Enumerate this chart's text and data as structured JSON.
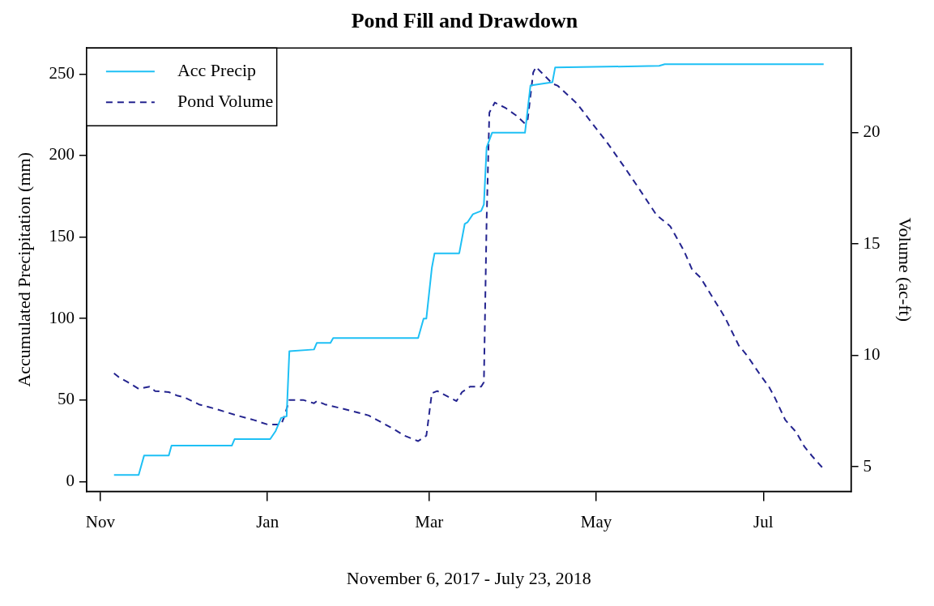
{
  "chart_data": {
    "type": "line",
    "title": "Pond Fill and Drawdown",
    "xlabel": "November 6, 2017 - July 23, 2018",
    "ylabel": "Accumulated Precipitation (mm)",
    "y2label": "Volume (ac-ft)",
    "xlim": [
      "2017-10-27",
      "2018-08-02"
    ],
    "xticks": [
      {
        "value": "2017-11-01",
        "label": "Nov"
      },
      {
        "value": "2018-01-01",
        "label": "Jan"
      },
      {
        "value": "2018-03-01",
        "label": "Mar"
      },
      {
        "value": "2018-05-01",
        "label": "May"
      },
      {
        "value": "2018-07-01",
        "label": "Jul"
      }
    ],
    "ylim": [
      -6,
      266
    ],
    "yticks": [
      0,
      50,
      100,
      150,
      200,
      250
    ],
    "y2lim": [
      3.9,
      23.8
    ],
    "y2ticks": [
      5,
      10,
      15,
      20
    ],
    "legend": "top left",
    "marker": "none",
    "series": [
      {
        "name": "Acc Precip",
        "color": "#1ec0f5",
        "line_style": "solid",
        "x": [
          "2017-11-06",
          "2017-11-15",
          "2017-11-17",
          "2017-11-26",
          "2017-11-27",
          "2017-12-19",
          "2017-12-20",
          "2018-01-02",
          "2018-01-04",
          "2018-01-06",
          "2018-01-08",
          "2018-01-09",
          "2018-01-18",
          "2018-01-19",
          "2018-01-24",
          "2018-01-25",
          "2018-02-25",
          "2018-02-27",
          "2018-02-28",
          "2018-03-02",
          "2018-03-03",
          "2018-03-12",
          "2018-03-14",
          "2018-03-15",
          "2018-03-17",
          "2018-03-20",
          "2018-03-21",
          "2018-03-22",
          "2018-03-24",
          "2018-04-05",
          "2018-04-07",
          "2018-04-15",
          "2018-04-16",
          "2018-05-24",
          "2018-05-26",
          "2018-07-23"
        ],
        "values": [
          4,
          4,
          16,
          16,
          22,
          22,
          26,
          26,
          31,
          39,
          40,
          80,
          81,
          85,
          85,
          88,
          88,
          100,
          100,
          131,
          140,
          140,
          158,
          159,
          164,
          166,
          170,
          205,
          214,
          214,
          243,
          245,
          254,
          255,
          256,
          256
        ]
      },
      {
        "name": "Pond Volume",
        "color": "#24248f",
        "line_style": "dashed",
        "axis": "y2",
        "x": [
          "2017-11-06",
          "2017-11-08",
          "2017-11-11",
          "2017-11-15",
          "2017-11-19",
          "2017-11-21",
          "2017-11-26",
          "2017-11-29",
          "2017-12-02",
          "2017-12-07",
          "2017-12-13",
          "2017-12-21",
          "2017-12-27",
          "2018-01-01",
          "2018-01-06",
          "2018-01-07",
          "2018-01-09",
          "2018-01-14",
          "2018-01-18",
          "2018-01-19",
          "2018-01-22",
          "2018-02-01",
          "2018-02-07",
          "2018-02-10",
          "2018-02-16",
          "2018-02-20",
          "2018-02-25",
          "2018-02-28",
          "2018-03-02",
          "2018-03-04",
          "2018-03-11",
          "2018-03-13",
          "2018-03-16",
          "2018-03-20",
          "2018-03-21",
          "2018-03-22",
          "2018-03-23",
          "2018-03-25",
          "2018-03-29",
          "2018-04-02",
          "2018-04-05",
          "2018-04-06",
          "2018-04-08",
          "2018-04-09",
          "2018-04-11",
          "2018-04-15",
          "2018-04-17",
          "2018-04-24",
          "2018-04-29",
          "2018-05-05",
          "2018-05-11",
          "2018-05-16",
          "2018-05-23",
          "2018-05-28",
          "2018-06-02",
          "2018-06-05",
          "2018-06-08",
          "2018-06-12",
          "2018-06-17",
          "2018-06-22",
          "2018-06-25",
          "2018-06-30",
          "2018-07-03",
          "2018-07-05",
          "2018-07-09",
          "2018-07-13",
          "2018-07-16",
          "2018-07-19",
          "2018-07-23"
        ],
        "values": [
          9.2,
          9.0,
          8.8,
          8.5,
          8.6,
          8.4,
          8.35,
          8.2,
          8.1,
          7.8,
          7.6,
          7.3,
          7.1,
          6.9,
          6.9,
          7.2,
          8.0,
          8.0,
          7.85,
          7.95,
          7.8,
          7.5,
          7.3,
          7.1,
          6.7,
          6.4,
          6.15,
          6.4,
          8.3,
          8.4,
          7.95,
          8.35,
          8.6,
          8.6,
          8.8,
          16.1,
          20.9,
          21.35,
          21.1,
          20.75,
          20.4,
          20.6,
          22.7,
          22.95,
          22.7,
          22.2,
          22.1,
          21.3,
          20.5,
          19.55,
          18.5,
          17.6,
          16.3,
          15.8,
          14.7,
          13.85,
          13.5,
          12.7,
          11.7,
          10.45,
          10.0,
          9.1,
          8.6,
          8.15,
          7.1,
          6.55,
          5.9,
          5.45,
          4.9
        ]
      }
    ]
  }
}
